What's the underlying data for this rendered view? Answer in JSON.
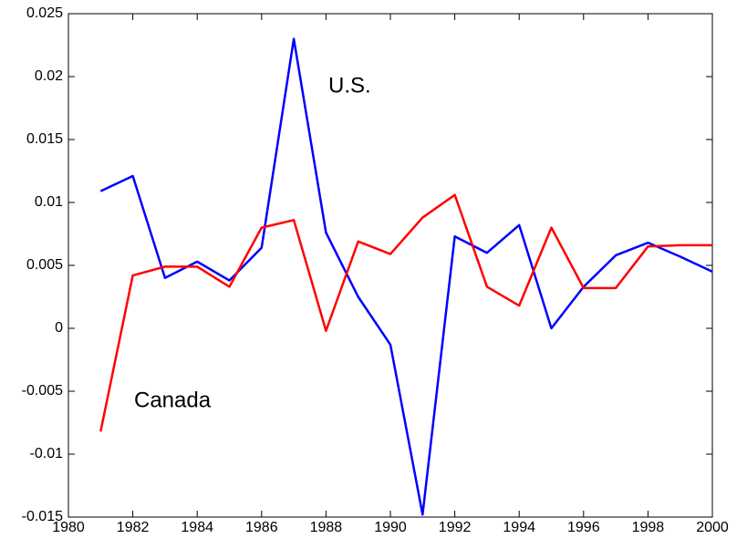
{
  "chart_data": {
    "type": "line",
    "x": [
      1981,
      1982,
      1983,
      1984,
      1985,
      1986,
      1987,
      1988,
      1989,
      1990,
      1991,
      1992,
      1993,
      1994,
      1995,
      1996,
      1997,
      1998,
      1999,
      2000
    ],
    "series": [
      {
        "name": "U.S.",
        "color": "#0000ff",
        "values": [
          0.0109,
          0.0121,
          0.004,
          0.0053,
          0.0038,
          0.0064,
          0.023,
          0.0076,
          0.0025,
          -0.0013,
          -0.0148,
          0.0073,
          0.006,
          0.0082,
          0.0,
          0.0033,
          0.0058,
          0.0068,
          0.0057,
          0.0045
        ]
      },
      {
        "name": "Canada",
        "color": "#ff0000",
        "values": [
          -0.0082,
          0.0042,
          0.0049,
          0.0049,
          0.0033,
          0.008,
          0.0086,
          -0.0002,
          0.0069,
          0.0059,
          0.0088,
          0.0106,
          0.0033,
          0.0018,
          0.008,
          0.0032,
          0.0032,
          0.0065,
          0.0066,
          0.0066
        ]
      }
    ],
    "xlim": [
      1980,
      2000
    ],
    "xticks": [
      1980,
      1982,
      1984,
      1986,
      1988,
      1990,
      1992,
      1994,
      1996,
      1998,
      2000
    ],
    "ylim": [
      -0.015,
      0.025
    ],
    "yticks": [
      -0.015,
      -0.01,
      -0.005,
      0,
      0.005,
      0.01,
      0.015,
      0.02,
      0.025
    ],
    "grid": false
  }
}
